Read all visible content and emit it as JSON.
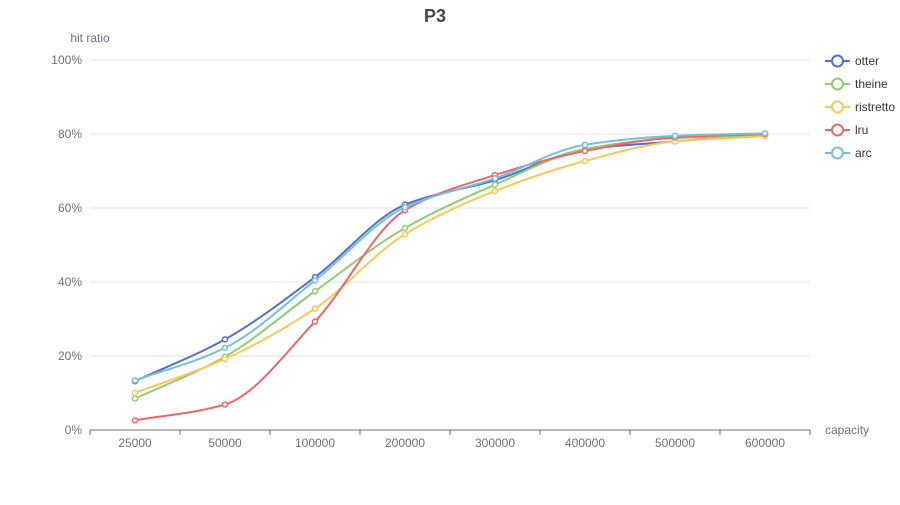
{
  "chart_data": {
    "type": "line",
    "title": "P3",
    "xlabel": "capacity",
    "ylabel": "hit ratio",
    "categories": [
      "25000",
      "50000",
      "100000",
      "200000",
      "300000",
      "400000",
      "500000",
      "600000"
    ],
    "ylim": [
      0,
      100
    ],
    "yticks": [
      0,
      20,
      40,
      60,
      80,
      100
    ],
    "ytick_labels": [
      "0%",
      "20%",
      "40%",
      "60%",
      "80%",
      "100%"
    ],
    "grid": true,
    "smooth": true,
    "legend_position": "right",
    "series": [
      {
        "name": "otter",
        "color": "#5470c6",
        "values": [
          13.2,
          24.5,
          41.3,
          60.9,
          67.5,
          75.8,
          78.0,
          80.1
        ]
      },
      {
        "name": "theine",
        "color": "#91cc75",
        "values": [
          8.5,
          19.8,
          37.5,
          54.6,
          66.3,
          75.9,
          78.9,
          79.6
        ]
      },
      {
        "name": "ristretto",
        "color": "#fac858",
        "values": [
          10.0,
          19.2,
          32.8,
          52.9,
          64.6,
          72.7,
          78.0,
          79.4
        ]
      },
      {
        "name": "lru",
        "color": "#ee6666",
        "values": [
          2.6,
          6.9,
          29.3,
          59.4,
          68.9,
          75.4,
          79.1,
          80.0
        ]
      },
      {
        "name": "arc",
        "color": "#73c0de",
        "values": [
          13.4,
          22.2,
          40.4,
          60.2,
          68.0,
          77.1,
          79.5,
          80.2
        ]
      }
    ]
  }
}
